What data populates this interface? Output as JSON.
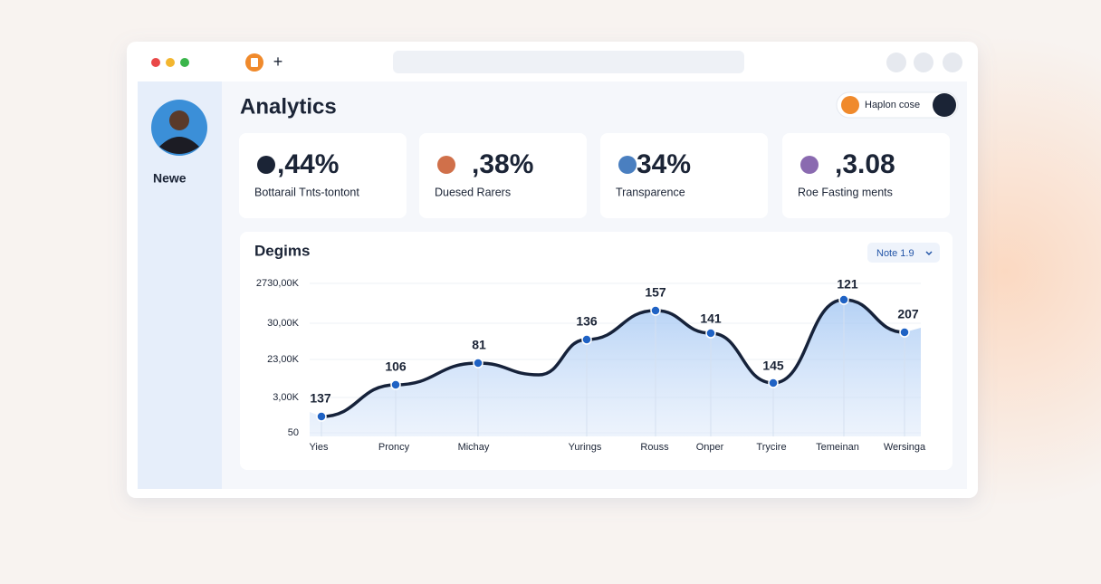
{
  "app": {
    "title": "Analytics",
    "user": "Newe",
    "action_button": "Haplon cose"
  },
  "cards": [
    {
      "value": ",44%",
      "label": "Bottarail Tnts-tontont"
    },
    {
      "value": ",38%",
      "label": "Duesed Rarers"
    },
    {
      "value": "34%",
      "label": "Transparence"
    },
    {
      "value": ",3.08",
      "label": "Roe Fasting ments"
    }
  ],
  "chart": {
    "title": "Degims",
    "dropdown": "Note 1.9",
    "y_tick_labels": [
      "2730,00K",
      "30,00K",
      "23,00K",
      "3,00K",
      "50"
    ],
    "categories": [
      "Yies",
      "Proncy",
      "Michay",
      "Yurings",
      "Rouss",
      "Onper",
      "Trycire",
      "Temeinan",
      "Wersinga"
    ],
    "point_labels": [
      137,
      106,
      81,
      136,
      157,
      141,
      145,
      121,
      207
    ]
  }
}
